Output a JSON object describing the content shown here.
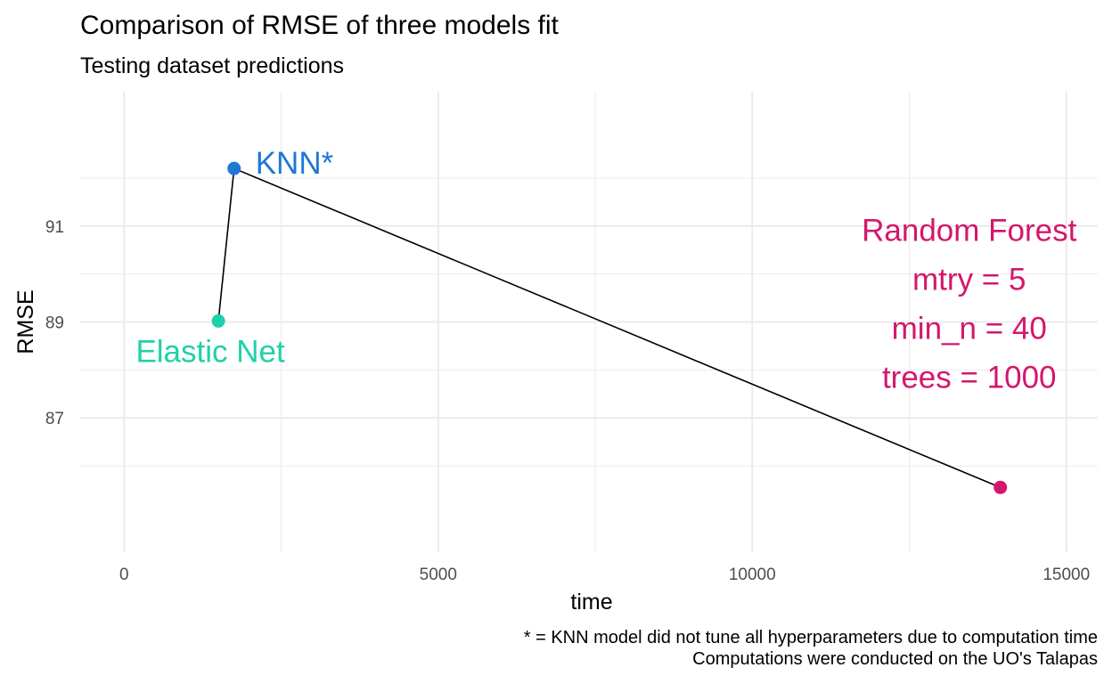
{
  "title": "Comparison of RMSE of three models fit",
  "subtitle": "Testing dataset predictions",
  "caption": [
    "* = KNN model did not tune all hyperparameters due to computation time",
    "Computations were conducted on the UO's Talapas"
  ],
  "colors": {
    "elastic_net": "#1fd1a8",
    "knn": "#1f78d4",
    "random_forest": "#d4176c",
    "line": "#000000",
    "grid": "#ebebeb"
  },
  "chart_data": {
    "type": "line",
    "xlabel": "time",
    "ylabel": "RMSE",
    "xlim": [
      -700,
      15500
    ],
    "ylim": [
      84.2,
      93.8
    ],
    "x_ticks": [
      0,
      5000,
      10000,
      15000
    ],
    "x_tick_labels": [
      "0",
      "5000",
      "10000",
      "15000"
    ],
    "y_ticks": [
      87,
      89,
      91
    ],
    "y_tick_labels": [
      "87",
      "89",
      "91"
    ],
    "grid": true,
    "legend": "none",
    "points": [
      {
        "x": 1500,
        "y": 89.02,
        "color_key": "elastic_net",
        "label": [
          "Elastic Net"
        ]
      },
      {
        "x": 1750,
        "y": 92.2,
        "color_key": "knn",
        "label": [
          "KNN*"
        ]
      },
      {
        "x": 13950,
        "y": 85.55,
        "color_key": "random_forest",
        "label": [
          "Random Forest",
          "mtry = 5",
          "min_n = 40",
          "trees = 1000"
        ]
      }
    ]
  }
}
